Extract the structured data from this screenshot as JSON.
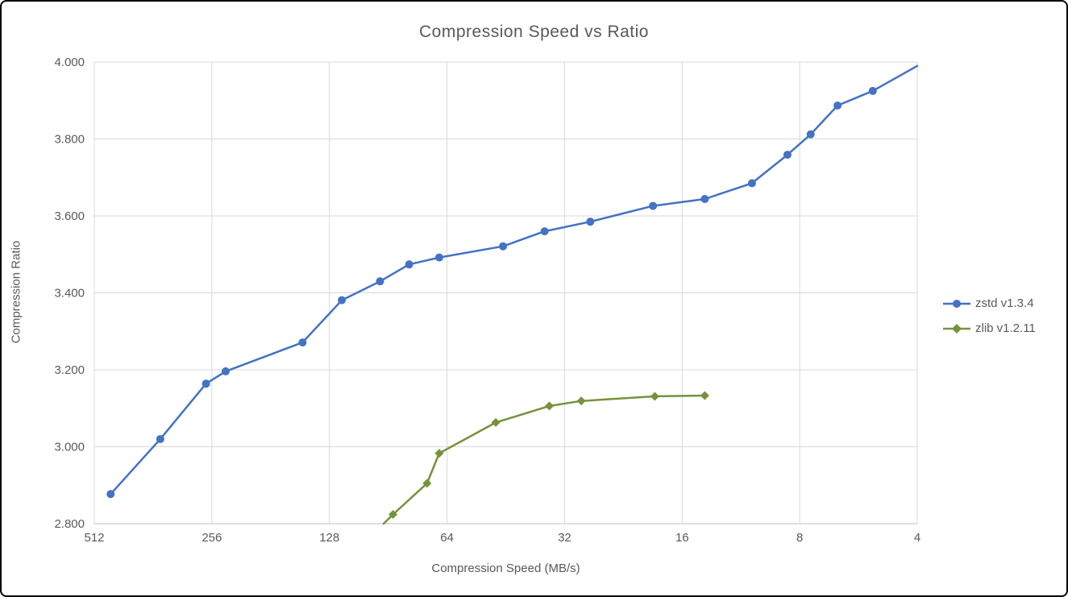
{
  "title": "Compression Speed vs Ratio",
  "x_axis": {
    "label": "Compression Speed (MB/s)"
  },
  "y_axis": {
    "label": "Compression Ratio"
  },
  "legend": [
    {
      "label": "zstd v1.3.4",
      "color": "#4472C4",
      "marker": "circle"
    },
    {
      "label": "zlib v1.2.11",
      "color": "#76923C",
      "marker": "diamond"
    }
  ],
  "colors": {
    "gridline": "#D9D9D9",
    "axis_line": "#BFBFBF",
    "text": "#595959"
  },
  "chart_data": {
    "type": "line",
    "title": "Compression Speed vs Ratio",
    "xlabel": "Compression Speed (MB/s)",
    "ylabel": "Compression Ratio",
    "x_scale": "log2-reversed",
    "xlim": [
      512,
      4
    ],
    "ylim": [
      2.8,
      4.0
    ],
    "x_ticks": [
      512,
      256,
      128,
      64,
      32,
      16,
      8,
      4
    ],
    "y_ticks": [
      "2.800",
      "3.000",
      "3.200",
      "3.400",
      "3.600",
      "3.800",
      "4.000"
    ],
    "grid": true,
    "legend_position": "right",
    "series": [
      {
        "name": "zstd v1.3.4",
        "color": "#4472C4",
        "marker": "circle",
        "points": [
          [
            465,
            2.877
          ],
          [
            347,
            3.02
          ],
          [
            265,
            3.164
          ],
          [
            236,
            3.196
          ],
          [
            150,
            3.271
          ],
          [
            119,
            3.381
          ],
          [
            95,
            3.43
          ],
          [
            80,
            3.474
          ],
          [
            67,
            3.492
          ],
          [
            46,
            3.521
          ],
          [
            36,
            3.56
          ],
          [
            27.5,
            3.585
          ],
          [
            19,
            3.626
          ],
          [
            14,
            3.644
          ],
          [
            10.6,
            3.685
          ],
          [
            8.6,
            3.759
          ],
          [
            7.5,
            3.812
          ],
          [
            6.4,
            3.887
          ],
          [
            5.2,
            3.925
          ]
        ],
        "tail": [
          4,
          3.99
        ]
      },
      {
        "name": "zlib v1.2.11",
        "color": "#76923C",
        "marker": "diamond",
        "lead": [
          93,
          2.8
        ],
        "points": [
          [
            88,
            2.824
          ],
          [
            72,
            2.905
          ],
          [
            67,
            2.983
          ],
          [
            48,
            3.063
          ],
          [
            35,
            3.106
          ],
          [
            29,
            3.119
          ],
          [
            18.8,
            3.131
          ],
          [
            14,
            3.133
          ]
        ]
      }
    ]
  }
}
